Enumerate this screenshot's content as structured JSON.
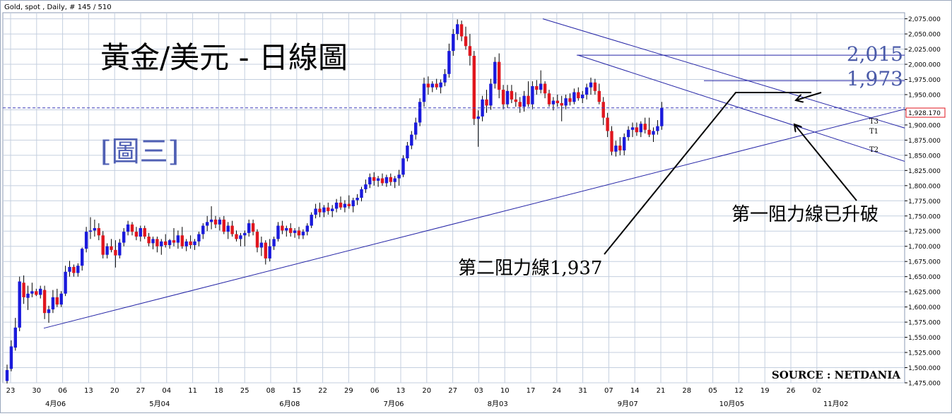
{
  "header": "Gold, spot , Daily, # 145 / 510",
  "title": "黃金/美元 - 日線圖",
  "figure_label": "[圖三]",
  "source": "SOURCE : NETDANIA",
  "current_price_label": "1,928.170",
  "colors": {
    "up": "#1a1adc",
    "down": "#e0161e",
    "trendline": "#2424a6",
    "level_text": "#4a5aa8",
    "figure_label": "#5060b4",
    "grid": "#c4cfdf",
    "text": "#000000"
  },
  "chart_data": {
    "type": "candlestick",
    "title": "黃金/美元 - 日線圖",
    "y_axis": {
      "min": 1475,
      "max": 2085,
      "step": 25,
      "tick_labels": [
        "1,475.000",
        "1,500.000",
        "1,525.000",
        "1,550.000",
        "1,575.000",
        "1,600.000",
        "1,625.000",
        "1,650.000",
        "1,675.000",
        "1,700.000",
        "1,725.000",
        "1,750.000",
        "1,775.000",
        "1,800.000",
        "1,825.000",
        "1,850.000",
        "1,875.000",
        "1,900.000",
        "1,925.000",
        "1,950.000",
        "1,975.000",
        "2,000.000",
        "2,025.000",
        "2,050.000",
        "2,075.000"
      ]
    },
    "x_axis": {
      "day_labels": [
        "23",
        "30",
        "06",
        "13",
        "20",
        "27",
        "04",
        "11",
        "18",
        "25",
        "08",
        "15",
        "22",
        "29",
        "06",
        "13",
        "20",
        "27",
        "03",
        "10",
        "17",
        "24",
        "31",
        "07",
        "14",
        "21",
        "28",
        "05",
        "12",
        "19",
        "26",
        "02"
      ],
      "month_labels": [
        "4月06",
        "5月04",
        "6月08",
        "7月06",
        "8月03",
        "9月07",
        "10月05",
        "11月02"
      ]
    },
    "horizontal_levels": [
      {
        "label": "2,015",
        "value": 2015
      },
      {
        "label": "1,973",
        "value": 1973
      }
    ],
    "current_price": 1928.17,
    "trendlines": [
      {
        "label": "T3",
        "from": [
          "03/31",
          1565
        ],
        "to": [
          "11/16",
          1926
        ]
      },
      {
        "label": "T1",
        "from": [
          "08/07",
          2075
        ],
        "to": [
          "11/16",
          1895
        ]
      },
      {
        "label": "T2",
        "from": [
          "08/17",
          2015
        ],
        "to": [
          "11/16",
          1840
        ]
      }
    ],
    "annotations": [
      {
        "text": "第二阻力線1,937"
      },
      {
        "text": "第一阻力線已升破"
      }
    ],
    "candles_ohlc": [
      [
        1478,
        1505,
        1474,
        1496
      ],
      [
        1498,
        1545,
        1494,
        1535
      ],
      [
        1533,
        1582,
        1528,
        1566
      ],
      [
        1566,
        1650,
        1560,
        1642
      ],
      [
        1640,
        1652,
        1605,
        1616
      ],
      [
        1615,
        1635,
        1595,
        1622
      ],
      [
        1622,
        1640,
        1616,
        1626
      ],
      [
        1626,
        1630,
        1618,
        1620
      ],
      [
        1620,
        1635,
        1614,
        1630
      ],
      [
        1628,
        1635,
        1580,
        1590
      ],
      [
        1590,
        1602,
        1574,
        1596
      ],
      [
        1596,
        1628,
        1590,
        1616
      ],
      [
        1616,
        1630,
        1600,
        1604
      ],
      [
        1604,
        1626,
        1600,
        1622
      ],
      [
        1622,
        1668,
        1618,
        1658
      ],
      [
        1658,
        1676,
        1650,
        1666
      ],
      [
        1666,
        1670,
        1650,
        1656
      ],
      [
        1656,
        1672,
        1650,
        1668
      ],
      [
        1668,
        1698,
        1660,
        1696
      ],
      [
        1696,
        1732,
        1690,
        1724
      ],
      [
        1724,
        1748,
        1712,
        1726
      ],
      [
        1726,
        1744,
        1716,
        1730
      ],
      [
        1730,
        1738,
        1710,
        1718
      ],
      [
        1718,
        1725,
        1680,
        1686
      ],
      [
        1686,
        1705,
        1680,
        1700
      ],
      [
        1700,
        1712,
        1690,
        1694
      ],
      [
        1694,
        1710,
        1665,
        1685
      ],
      [
        1685,
        1712,
        1680,
        1706
      ],
      [
        1706,
        1730,
        1700,
        1724
      ],
      [
        1724,
        1742,
        1718,
        1736
      ],
      [
        1736,
        1740,
        1718,
        1724
      ],
      [
        1724,
        1732,
        1710,
        1716
      ],
      [
        1716,
        1734,
        1708,
        1730
      ],
      [
        1730,
        1734,
        1712,
        1716
      ],
      [
        1716,
        1722,
        1700,
        1705
      ],
      [
        1705,
        1716,
        1695,
        1712
      ],
      [
        1712,
        1716,
        1690,
        1700
      ],
      [
        1700,
        1712,
        1686,
        1708
      ],
      [
        1708,
        1720,
        1698,
        1702
      ],
      [
        1702,
        1712,
        1696,
        1710
      ],
      [
        1710,
        1730,
        1700,
        1706
      ],
      [
        1706,
        1726,
        1696,
        1718
      ],
      [
        1718,
        1732,
        1696,
        1700
      ],
      [
        1700,
        1712,
        1692,
        1708
      ],
      [
        1708,
        1718,
        1696,
        1702
      ],
      [
        1702,
        1712,
        1694,
        1708
      ],
      [
        1708,
        1724,
        1700,
        1720
      ],
      [
        1720,
        1738,
        1712,
        1734
      ],
      [
        1734,
        1750,
        1725,
        1740
      ],
      [
        1740,
        1766,
        1728,
        1744
      ],
      [
        1744,
        1750,
        1730,
        1736
      ],
      [
        1736,
        1748,
        1726,
        1744
      ],
      [
        1744,
        1750,
        1720,
        1724
      ],
      [
        1724,
        1740,
        1712,
        1734
      ],
      [
        1734,
        1742,
        1716,
        1720
      ],
      [
        1720,
        1726,
        1708,
        1712
      ],
      [
        1712,
        1722,
        1700,
        1718
      ],
      [
        1718,
        1726,
        1700,
        1722
      ],
      [
        1722,
        1744,
        1716,
        1738
      ],
      [
        1738,
        1744,
        1718,
        1724
      ],
      [
        1724,
        1728,
        1690,
        1698
      ],
      [
        1698,
        1716,
        1684,
        1706
      ],
      [
        1706,
        1710,
        1670,
        1680
      ],
      [
        1680,
        1712,
        1675,
        1700
      ],
      [
        1700,
        1716,
        1694,
        1712
      ],
      [
        1712,
        1740,
        1708,
        1734
      ],
      [
        1734,
        1742,
        1720,
        1726
      ],
      [
        1726,
        1734,
        1716,
        1730
      ],
      [
        1730,
        1738,
        1716,
        1722
      ],
      [
        1722,
        1730,
        1714,
        1726
      ],
      [
        1726,
        1732,
        1712,
        1718
      ],
      [
        1718,
        1728,
        1712,
        1724
      ],
      [
        1724,
        1738,
        1718,
        1734
      ],
      [
        1734,
        1756,
        1730,
        1752
      ],
      [
        1752,
        1770,
        1746,
        1762
      ],
      [
        1762,
        1772,
        1748,
        1756
      ],
      [
        1756,
        1768,
        1748,
        1764
      ],
      [
        1764,
        1772,
        1752,
        1758
      ],
      [
        1758,
        1768,
        1748,
        1762
      ],
      [
        1762,
        1778,
        1756,
        1772
      ],
      [
        1772,
        1782,
        1760,
        1764
      ],
      [
        1764,
        1776,
        1756,
        1770
      ],
      [
        1770,
        1784,
        1762,
        1766
      ],
      [
        1766,
        1780,
        1756,
        1776
      ],
      [
        1776,
        1786,
        1768,
        1780
      ],
      [
        1780,
        1798,
        1774,
        1794
      ],
      [
        1794,
        1810,
        1788,
        1802
      ],
      [
        1802,
        1820,
        1796,
        1814
      ],
      [
        1814,
        1822,
        1800,
        1808
      ],
      [
        1808,
        1816,
        1798,
        1812
      ],
      [
        1812,
        1820,
        1800,
        1804
      ],
      [
        1804,
        1818,
        1798,
        1814
      ],
      [
        1814,
        1820,
        1800,
        1806
      ],
      [
        1806,
        1816,
        1796,
        1812
      ],
      [
        1812,
        1826,
        1800,
        1818
      ],
      [
        1818,
        1850,
        1814,
        1845
      ],
      [
        1845,
        1872,
        1840,
        1866
      ],
      [
        1866,
        1890,
        1860,
        1884
      ],
      [
        1884,
        1912,
        1876,
        1904
      ],
      [
        1904,
        1944,
        1898,
        1938
      ],
      [
        1938,
        1978,
        1930,
        1968
      ],
      [
        1968,
        1980,
        1950,
        1962
      ],
      [
        1962,
        1972,
        1954,
        1968
      ],
      [
        1968,
        1976,
        1958,
        1962
      ],
      [
        1962,
        1975,
        1952,
        1970
      ],
      [
        1970,
        1992,
        1964,
        1984
      ],
      [
        1984,
        2034,
        1978,
        2022
      ],
      [
        2022,
        2058,
        2014,
        2050
      ],
      [
        2050,
        2074,
        2040,
        2066
      ],
      [
        2066,
        2072,
        2038,
        2046
      ],
      [
        2046,
        2062,
        2024,
        2030
      ],
      [
        2030,
        2050,
        1998,
        2014
      ],
      [
        2014,
        2022,
        1900,
        1910
      ],
      [
        1910,
        1924,
        1864,
        1914
      ],
      [
        1914,
        1948,
        1906,
        1942
      ],
      [
        1942,
        1958,
        1920,
        1932
      ],
      [
        1932,
        1976,
        1925,
        1968
      ],
      [
        1968,
        2012,
        1960,
        2004
      ],
      [
        2004,
        2018,
        1944,
        1958
      ],
      [
        1958,
        1966,
        1926,
        1934
      ],
      [
        1934,
        1966,
        1928,
        1956
      ],
      [
        1956,
        1966,
        1936,
        1942
      ],
      [
        1942,
        1954,
        1930,
        1938
      ],
      [
        1938,
        1946,
        1920,
        1930
      ],
      [
        1930,
        1956,
        1922,
        1948
      ],
      [
        1948,
        1972,
        1930,
        1934
      ],
      [
        1934,
        1972,
        1926,
        1964
      ],
      [
        1964,
        1974,
        1950,
        1958
      ],
      [
        1958,
        1990,
        1952,
        1968
      ],
      [
        1968,
        1972,
        1944,
        1952
      ],
      [
        1952,
        1958,
        1930,
        1934
      ],
      [
        1934,
        1946,
        1924,
        1940
      ],
      [
        1940,
        1950,
        1930,
        1936
      ],
      [
        1936,
        1948,
        1906,
        1932
      ],
      [
        1932,
        1950,
        1926,
        1944
      ],
      [
        1944,
        1952,
        1932,
        1938
      ],
      [
        1938,
        1960,
        1934,
        1954
      ],
      [
        1954,
        1962,
        1940,
        1944
      ],
      [
        1944,
        1956,
        1936,
        1950
      ],
      [
        1950,
        1968,
        1942,
        1962
      ],
      [
        1962,
        1978,
        1950,
        1970
      ],
      [
        1970,
        1976,
        1950,
        1956
      ],
      [
        1956,
        1968,
        1934,
        1938
      ],
      [
        1938,
        1946,
        1900,
        1912
      ],
      [
        1912,
        1920,
        1880,
        1890
      ],
      [
        1890,
        1898,
        1850,
        1856
      ],
      [
        1856,
        1874,
        1848,
        1866
      ],
      [
        1866,
        1880,
        1850,
        1858
      ],
      [
        1858,
        1886,
        1850,
        1880
      ],
      [
        1880,
        1898,
        1874,
        1892
      ],
      [
        1892,
        1904,
        1880,
        1896
      ],
      [
        1896,
        1904,
        1882,
        1888
      ],
      [
        1888,
        1906,
        1880,
        1902
      ],
      [
        1902,
        1912,
        1886,
        1892
      ],
      [
        1892,
        1912,
        1880,
        1884
      ],
      [
        1884,
        1896,
        1872,
        1890
      ],
      [
        1890,
        1908,
        1884,
        1898
      ],
      [
        1898,
        1938,
        1892,
        1928
      ]
    ]
  }
}
